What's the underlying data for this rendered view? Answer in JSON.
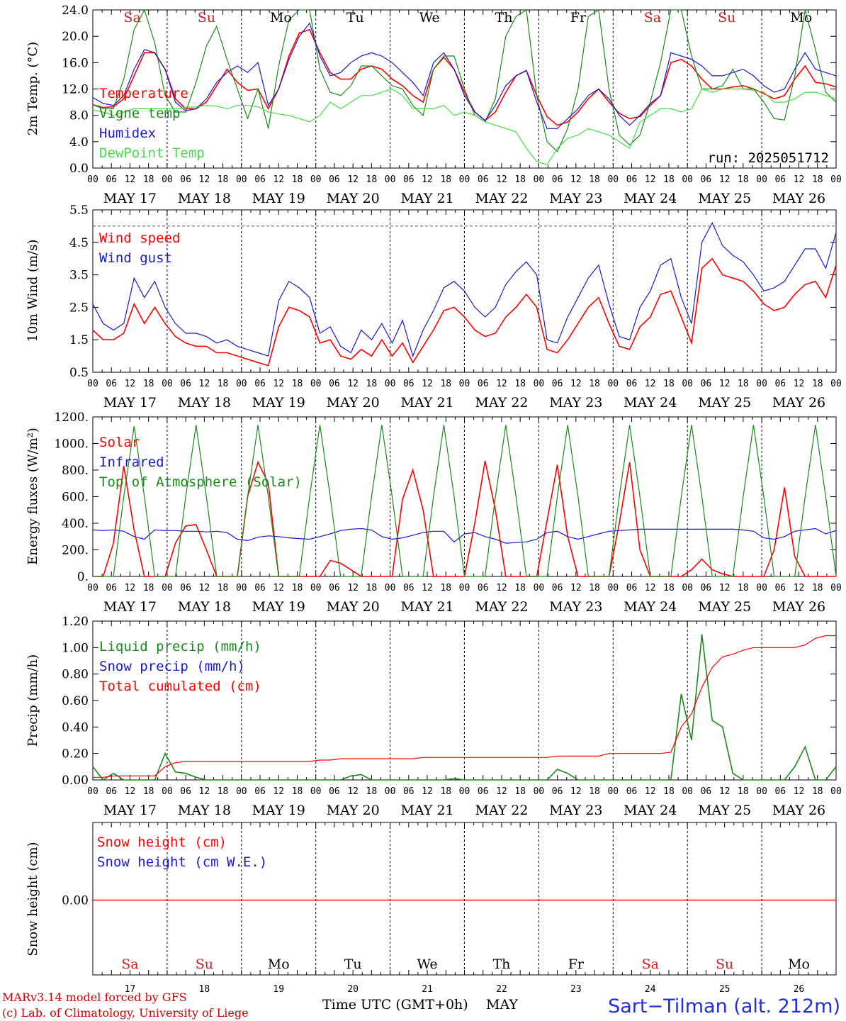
{
  "chart_data": [
    {
      "type": "line",
      "ylabel": "2m Temp. (°C)",
      "ylim": [
        0,
        24
      ],
      "yticks": [
        "0.0",
        "4.0",
        "8.0",
        "12.0",
        "16.0",
        "20.0",
        "24.0"
      ],
      "annotation": "run: 2025051712",
      "series": [
        {
          "name": "Temperature",
          "color": "#ff0000",
          "values": [
            9.6,
            9.2,
            9.3,
            10.5,
            14.0,
            17.5,
            17.5,
            15.0,
            10.5,
            9.0,
            9.0,
            10.0,
            12.5,
            15.0,
            13.0,
            11.8,
            12.0,
            9.0,
            12.0,
            17.0,
            20.5,
            21.0,
            17.5,
            14.5,
            13.5,
            13.5,
            15.0,
            15.5,
            15.0,
            13.5,
            12.5,
            11.0,
            10.0,
            15.0,
            16.8,
            15.0,
            11.5,
            8.5,
            7.2,
            8.5,
            11.5,
            14.0,
            14.8,
            11.0,
            7.8,
            6.5,
            7.0,
            8.5,
            10.5,
            12.0,
            10.0,
            8.3,
            7.5,
            7.8,
            9.5,
            11.0,
            16.0,
            16.5,
            15.5,
            13.5,
            12.0,
            12.0,
            12.3,
            12.5,
            12.0,
            11.3,
            10.5,
            11.0,
            13.5,
            15.5,
            13.0,
            12.8,
            12.3
          ]
        },
        {
          "name": "Vigne temp",
          "color": "#1a8a1a",
          "values": [
            9.6,
            9.0,
            9.0,
            13.5,
            21.0,
            24.0,
            19.0,
            11.0,
            8.5,
            8.5,
            13.0,
            18.5,
            21.5,
            16.5,
            12.0,
            7.5,
            12.0,
            6.0,
            15.5,
            22.5,
            24.0,
            24.0,
            15.0,
            11.5,
            11.0,
            12.5,
            15.5,
            15.5,
            14.0,
            12.5,
            12.0,
            9.5,
            8.0,
            15.0,
            17.0,
            17.0,
            12.0,
            8.0,
            7.0,
            10.5,
            20.0,
            23.0,
            24.0,
            11.0,
            4.0,
            2.5,
            6.0,
            12.0,
            23.0,
            24.0,
            12.0,
            5.0,
            3.5,
            5.0,
            10.0,
            16.0,
            24.0,
            24.0,
            17.0,
            12.0,
            12.0,
            12.5,
            15.0,
            12.0,
            12.0,
            10.0,
            7.5,
            7.3,
            14.0,
            24.0,
            18.0,
            11.5,
            10.0
          ]
        },
        {
          "name": "Humidex",
          "color": "#1a1acc",
          "values": [
            10.7,
            9.8,
            9.5,
            11.0,
            15.0,
            18.0,
            17.5,
            15.0,
            10.0,
            8.7,
            9.0,
            10.5,
            13.0,
            14.5,
            15.5,
            14.5,
            16.0,
            9.5,
            12.0,
            16.5,
            20.0,
            22.0,
            17.0,
            14.0,
            14.5,
            16.0,
            17.0,
            17.5,
            17.0,
            16.0,
            14.5,
            13.0,
            11.0,
            16.0,
            17.5,
            15.0,
            11.0,
            8.5,
            7.2,
            9.5,
            12.5,
            14.0,
            14.8,
            10.0,
            6.0,
            6.0,
            7.5,
            9.0,
            11.0,
            12.0,
            10.5,
            8.0,
            6.5,
            8.0,
            9.8,
            11.0,
            17.5,
            17.0,
            16.5,
            15.5,
            14.0,
            14.0,
            14.5,
            15.0,
            14.0,
            12.5,
            11.5,
            12.0,
            15.0,
            17.5,
            15.0,
            14.5,
            14.0
          ]
        },
        {
          "name": "DewPoint Temp",
          "color": "#44dd44",
          "values": [
            8.8,
            8.5,
            8.0,
            8.5,
            9.0,
            9.0,
            9.0,
            9.0,
            9.0,
            9.2,
            9.3,
            9.5,
            9.4,
            9.0,
            9.5,
            9.5,
            9.3,
            8.5,
            8.2,
            8.0,
            7.5,
            7.0,
            8.0,
            10.0,
            9.0,
            10.0,
            11.0,
            11.0,
            11.5,
            12.0,
            11.0,
            9.0,
            9.0,
            9.0,
            9.5,
            8.0,
            8.5,
            8.0,
            7.0,
            6.5,
            6.0,
            5.5,
            3.0,
            1.0,
            0.5,
            3.0,
            4.5,
            5.0,
            6.0,
            5.5,
            5.0,
            4.0,
            3.0,
            7.0,
            8.0,
            9.0,
            9.0,
            8.5,
            9.0,
            12.0,
            11.5,
            12.0,
            12.0,
            12.0,
            11.8,
            11.5,
            10.0,
            10.0,
            10.5,
            11.5,
            11.5,
            11.0,
            10.5
          ]
        }
      ]
    },
    {
      "type": "line",
      "ylabel": "10m Wind (m/s)",
      "ylim": [
        0.5,
        5.5
      ],
      "yticks": [
        "0.5",
        "1.5",
        "2.5",
        "3.5",
        "4.5",
        "5.5"
      ],
      "series": [
        {
          "name": "Wind speed",
          "color": "#ff0000",
          "values": [
            1.8,
            1.5,
            1.5,
            1.7,
            2.6,
            2.0,
            2.5,
            2.0,
            1.6,
            1.4,
            1.3,
            1.3,
            1.1,
            1.1,
            1.0,
            0.9,
            0.8,
            0.7,
            1.9,
            2.5,
            2.4,
            2.2,
            1.4,
            1.5,
            1.0,
            0.9,
            1.2,
            1.0,
            1.5,
            1.0,
            1.4,
            0.8,
            1.3,
            1.8,
            2.4,
            2.5,
            2.2,
            1.8,
            1.6,
            1.7,
            2.2,
            2.5,
            2.9,
            2.5,
            1.2,
            1.1,
            1.5,
            2.0,
            2.5,
            2.8,
            2.0,
            1.3,
            1.2,
            1.9,
            2.2,
            2.9,
            3.0,
            2.2,
            1.4,
            3.7,
            4.0,
            3.5,
            3.4,
            3.3,
            3.0,
            2.6,
            2.4,
            2.5,
            2.9,
            3.2,
            3.3,
            2.8,
            3.8
          ]
        },
        {
          "name": "Wind gust",
          "color": "#1a1acc",
          "values": [
            2.6,
            2.0,
            1.8,
            2.0,
            3.4,
            2.8,
            3.3,
            2.5,
            2.0,
            1.7,
            1.7,
            1.6,
            1.4,
            1.5,
            1.3,
            1.2,
            1.1,
            1.0,
            2.7,
            3.3,
            3.1,
            2.8,
            1.7,
            1.9,
            1.3,
            1.1,
            1.8,
            1.5,
            2.0,
            1.4,
            2.1,
            1.0,
            1.8,
            2.4,
            3.1,
            3.3,
            3.0,
            2.5,
            2.2,
            2.5,
            3.2,
            3.6,
            3.9,
            3.5,
            1.5,
            1.4,
            2.2,
            2.8,
            3.4,
            3.8,
            2.6,
            1.6,
            1.5,
            2.5,
            3.0,
            3.8,
            4.0,
            2.8,
            2.0,
            4.5,
            5.1,
            4.4,
            4.1,
            3.9,
            3.5,
            3.0,
            3.1,
            3.3,
            3.8,
            4.3,
            4.3,
            3.7,
            4.8
          ]
        }
      ]
    },
    {
      "type": "line",
      "ylabel": "Energy fluxes (W/m²)",
      "ylim": [
        0,
        1200
      ],
      "yticks": [
        "0.",
        "200.",
        "400.",
        "600.",
        "800.",
        "1000.",
        "1200."
      ],
      "series": [
        {
          "name": "Solar",
          "color": "#ff0000",
          "values": [
            0,
            0,
            250,
            830,
            350,
            0,
            0,
            0,
            250,
            380,
            390,
            200,
            0,
            0,
            0,
            600,
            860,
            700,
            0,
            0,
            0,
            0,
            0,
            120,
            100,
            50,
            0,
            0,
            0,
            0,
            580,
            800,
            500,
            0,
            0,
            0,
            0,
            400,
            870,
            500,
            0,
            0,
            0,
            0,
            420,
            840,
            300,
            0,
            0,
            0,
            0,
            400,
            860,
            200,
            0,
            0,
            0,
            0,
            50,
            130,
            50,
            20,
            0,
            0,
            0,
            0,
            200,
            670,
            150,
            0,
            0,
            0,
            0
          ]
        },
        {
          "name": "Infrared",
          "color": "#1a1acc",
          "values": [
            350,
            345,
            350,
            340,
            300,
            280,
            350,
            345,
            345,
            340,
            340,
            335,
            340,
            330,
            280,
            270,
            295,
            305,
            300,
            290,
            285,
            280,
            300,
            320,
            345,
            355,
            360,
            350,
            300,
            280,
            290,
            310,
            330,
            340,
            340,
            260,
            320,
            330,
            300,
            280,
            250,
            255,
            260,
            280,
            330,
            340,
            300,
            280,
            300,
            320,
            340,
            345,
            350,
            355,
            355,
            355,
            355,
            355,
            355,
            355,
            355,
            355,
            355,
            350,
            340,
            290,
            280,
            300,
            340,
            350,
            360,
            320,
            345
          ]
        },
        {
          "name": "Top of Atmosphere (Solar)",
          "color": "#1a8a1a",
          "values": [
            0,
            0,
            0,
            600,
            1130,
            600,
            0,
            0,
            0,
            600,
            1140,
            600,
            0,
            0,
            0,
            600,
            1140,
            600,
            0,
            0,
            0,
            600,
            1140,
            600,
            0,
            0,
            0,
            600,
            1140,
            600,
            0,
            0,
            0,
            600,
            1140,
            600,
            0,
            0,
            0,
            600,
            1140,
            600,
            0,
            0,
            0,
            600,
            1140,
            600,
            0,
            0,
            0,
            600,
            1140,
            600,
            0,
            0,
            0,
            600,
            1140,
            600,
            0,
            0,
            0,
            600,
            1140,
            600,
            0,
            0,
            0,
            600,
            1140,
            600,
            0
          ]
        }
      ]
    },
    {
      "type": "line",
      "ylabel": "Precip (mm/h)",
      "ylim": [
        0,
        1.2
      ],
      "yticks": [
        "0.00",
        "0.20",
        "0.40",
        "0.60",
        "0.80",
        "1.00",
        "1.20"
      ],
      "series": [
        {
          "name": "Liquid precip (mm/h)",
          "color": "#1a8a1a",
          "values": [
            0.1,
            0,
            0.05,
            0,
            0,
            0,
            0,
            0.2,
            0.06,
            0.05,
            0.02,
            0,
            0,
            0,
            0,
            0,
            0,
            0,
            0,
            0,
            0,
            0,
            0,
            0,
            0,
            0.03,
            0.04,
            0,
            0,
            0,
            0,
            0,
            0,
            0,
            0,
            0.01,
            0,
            0,
            0,
            0,
            0,
            0,
            0,
            0,
            0,
            0.08,
            0.05,
            0,
            0,
            0,
            0,
            0,
            0,
            0,
            0,
            0,
            0,
            0.65,
            0.3,
            1.1,
            0.45,
            0.4,
            0.05,
            0,
            0,
            0,
            0,
            0,
            0.1,
            0.25,
            0,
            0,
            0.1
          ]
        },
        {
          "name": "Snow precip (mm/h)",
          "color": "#1a1acc",
          "values": []
        },
        {
          "name": "Total cumulated (cm)",
          "color": "#ff0000",
          "values": [
            0.02,
            0.02,
            0.03,
            0.03,
            0.03,
            0.03,
            0.03,
            0.1,
            0.13,
            0.14,
            0.14,
            0.14,
            0.14,
            0.14,
            0.14,
            0.14,
            0.14,
            0.14,
            0.14,
            0.14,
            0.14,
            0.14,
            0.15,
            0.15,
            0.16,
            0.16,
            0.16,
            0.16,
            0.16,
            0.16,
            0.16,
            0.16,
            0.17,
            0.17,
            0.17,
            0.17,
            0.17,
            0.17,
            0.17,
            0.17,
            0.17,
            0.17,
            0.17,
            0.17,
            0.17,
            0.18,
            0.18,
            0.18,
            0.18,
            0.18,
            0.2,
            0.2,
            0.2,
            0.2,
            0.2,
            0.2,
            0.21,
            0.4,
            0.5,
            0.7,
            0.85,
            0.93,
            0.95,
            0.98,
            1.0,
            1.0,
            1.0,
            1.0,
            1.0,
            1.02,
            1.07,
            1.09,
            1.09
          ]
        }
      ]
    },
    {
      "type": "line",
      "ylabel": "Snow height (cm)",
      "yticks": [
        "0.00"
      ],
      "series": [
        {
          "name": "Snow height (cm)",
          "color": "#ff0000",
          "values": [
            0,
            0
          ]
        },
        {
          "name": "Snow height (cm W.E.)",
          "color": "#1a1acc",
          "values": []
        }
      ]
    }
  ],
  "x_axis": {
    "hour_ticks": [
      "00",
      "06",
      "12",
      "18"
    ],
    "dates": [
      "MAY 17",
      "MAY 18",
      "MAY 19",
      "MAY 20",
      "MAY 21",
      "MAY 22",
      "MAY 23",
      "MAY 24",
      "MAY 25",
      "MAY 26"
    ],
    "weekdays": [
      "Sa",
      "Su",
      "Mo",
      "Tu",
      "We",
      "Th",
      "Fr",
      "Sa",
      "Su",
      "Mo"
    ],
    "weekday_colors": [
      "#dd1a1a",
      "#dd1a1a",
      "#000000",
      "#000000",
      "#000000",
      "#000000",
      "#000000",
      "#dd1a1a",
      "#dd1a1a",
      "#000000"
    ],
    "day_numbers": [
      "17",
      "18",
      "19",
      "20",
      "21",
      "22",
      "23",
      "24",
      "25",
      "26"
    ],
    "title": "Time UTC (GMT+0h)",
    "month": "MAY"
  },
  "footer": {
    "model_credit": "MARv3.14 model forced by GFS",
    "lab_credit": "(c) Lab. of Climatology, University of Liege",
    "station": "Sart−Tilman (alt. 212m)"
  }
}
